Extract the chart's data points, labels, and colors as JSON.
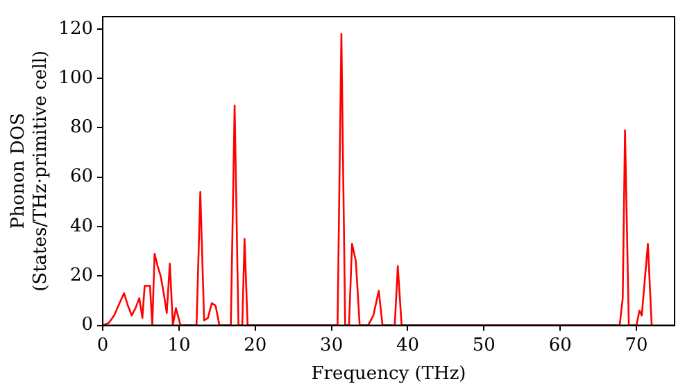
{
  "chart_data": {
    "type": "line",
    "xlabel": "Frequency (THz)",
    "ylabel": "Phonon DOS\n(States/THz·primitive cell)",
    "xlim": [
      0,
      75
    ],
    "xticks": [
      0,
      10,
      20,
      30,
      40,
      50,
      60,
      70
    ],
    "ylim": [
      0,
      125
    ],
    "yticks": [
      0,
      20,
      40,
      60,
      80,
      100,
      120
    ],
    "grid": false,
    "legend": false,
    "marker": "none",
    "line_style": "solid",
    "series": [
      {
        "color": "#ff0000",
        "x": [
          0,
          0.8,
          1.5,
          2.2,
          2.8,
          3.3,
          3.8,
          4.3,
          4.8,
          5.2,
          5.5,
          6.2,
          6.5,
          6.8,
          7.2,
          7.6,
          8.0,
          8.4,
          8.8,
          9.2,
          9.6,
          10.2,
          12.3,
          12.8,
          13.3,
          13.8,
          14.3,
          14.8,
          15.3,
          16.8,
          17.3,
          17.8,
          18.3,
          18.6,
          19.0,
          30.8,
          31.3,
          31.8,
          32.3,
          32.7,
          33.2,
          33.7,
          34.8,
          35.5,
          36.2,
          36.7,
          38.3,
          38.7,
          39.2,
          67.8,
          68.2,
          68.5,
          69.0,
          70.0,
          70.4,
          70.7,
          71.5,
          72.0
        ],
        "values": [
          0,
          1,
          4,
          9,
          13,
          8,
          4,
          7,
          11,
          3,
          16,
          16,
          0,
          29,
          24,
          20,
          13,
          5,
          25,
          0,
          7,
          0,
          0,
          54,
          2,
          3,
          9,
          8,
          0,
          0,
          89,
          0,
          0,
          35,
          0,
          0,
          118,
          0,
          0,
          33,
          26,
          0,
          0,
          4,
          14,
          0,
          0,
          24,
          0,
          0,
          11,
          79,
          0,
          0,
          6,
          4,
          33,
          0
        ]
      }
    ]
  }
}
